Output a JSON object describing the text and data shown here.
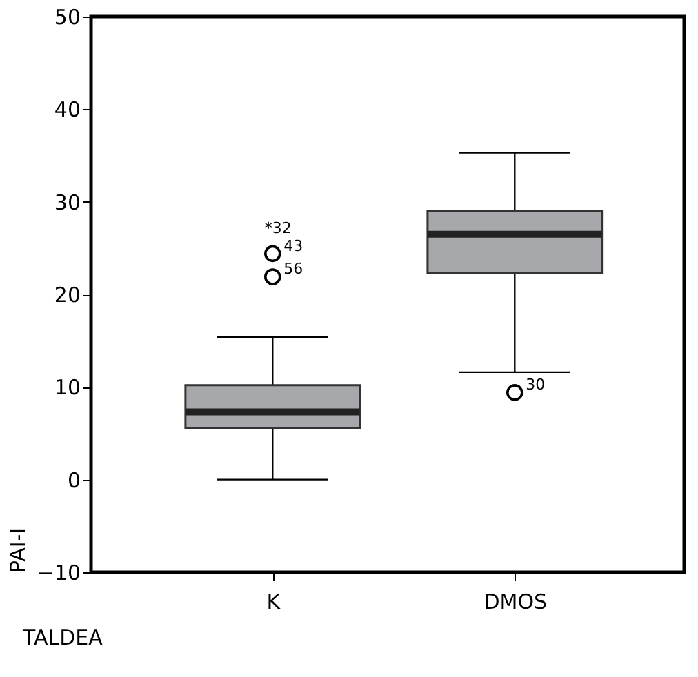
{
  "chart_data": {
    "type": "box",
    "xlabel": "TALDEA",
    "ylabel": "PAI-I",
    "categories": [
      "K",
      "DMOS"
    ],
    "boxes": [
      {
        "low": 0,
        "q1": 5.6,
        "median": 7.3,
        "q3": 10.2,
        "high": 15.4,
        "outliers": [
          24.4,
          21.9
        ]
      },
      {
        "low": 11.6,
        "q1": 22.3,
        "median": 26.5,
        "q3": 29.0,
        "high": 35.3,
        "outliers": [
          9.4
        ]
      }
    ],
    "color": "#a7a8ab",
    "ylim": [
      -10,
      50
    ],
    "yticks": [
      -10,
      0,
      10,
      20,
      30,
      40,
      50
    ],
    "grid": false,
    "annotations": [
      "*32",
      "43",
      "56",
      "30"
    ]
  }
}
